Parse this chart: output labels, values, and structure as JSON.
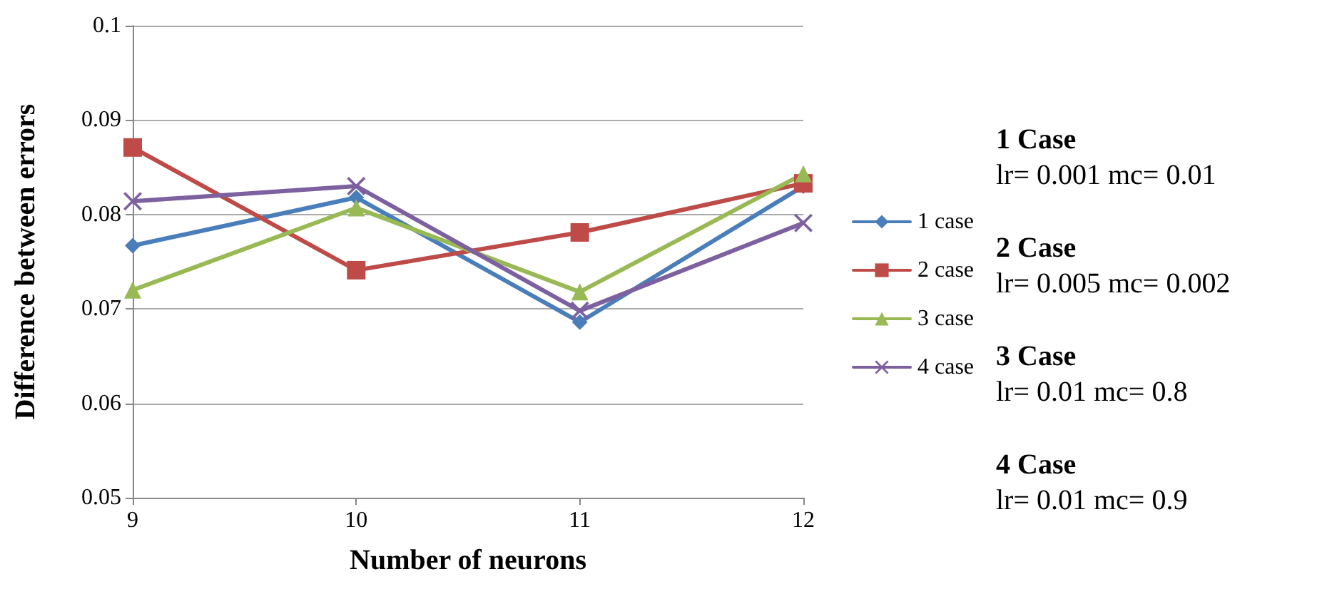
{
  "chart_data": {
    "type": "line",
    "xlabel": "Number of neurons",
    "ylabel": "Difference between errors",
    "categories": [
      "9",
      "10",
      "11",
      "12"
    ],
    "series": [
      {
        "name": "1 case",
        "color": "#4a7ebb",
        "marker": "diamond",
        "values": [
          0.0767,
          0.0818,
          0.0686,
          0.083
        ]
      },
      {
        "name": "2 case",
        "color": "#be4b48",
        "marker": "square",
        "values": [
          0.0871,
          0.0741,
          0.0781,
          0.0833
        ]
      },
      {
        "name": "3 case",
        "color": "#98b954",
        "marker": "triangle",
        "values": [
          0.072,
          0.0807,
          0.0718,
          0.0843
        ]
      },
      {
        "name": "4 case",
        "color": "#7d60a0",
        "marker": "cross",
        "values": [
          0.0814,
          0.083,
          0.0698,
          0.0791
        ]
      }
    ],
    "ylim": [
      0.05,
      0.1
    ],
    "yticks": [
      0.05,
      0.06,
      0.07,
      0.08,
      0.09,
      0.1
    ],
    "grid": "y",
    "legend": "right",
    "annotations": [
      "1 Case",
      "lr= 0.001 mc= 0.01",
      "2 Case",
      "lr= 0.005 mc= 0.002",
      "3 Case",
      "lr= 0.01 mc= 0.8",
      "4 Case",
      "lr= 0.01 mc= 0.9"
    ]
  }
}
